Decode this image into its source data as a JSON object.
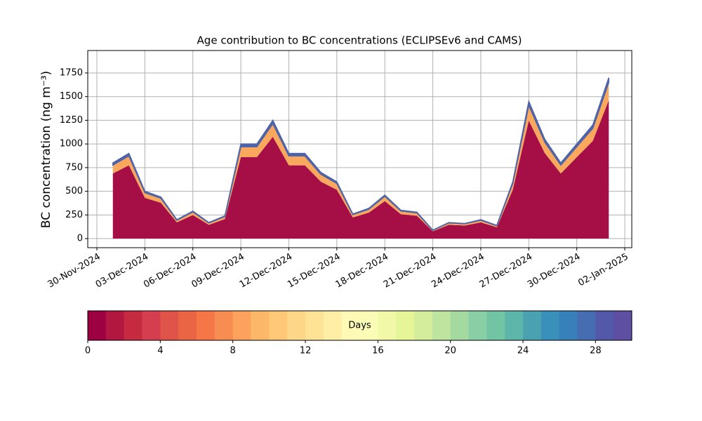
{
  "chart_data": {
    "type": "stacked_area",
    "title": "Age contribution to BC concentrations (ECLIPSEv6 and CAMS)",
    "ylabel": "BC concentration (ng m⁻³)",
    "x": [
      "2024-12-01",
      "2024-12-02",
      "2024-12-03",
      "2024-12-04",
      "2024-12-05",
      "2024-12-06",
      "2024-12-07",
      "2024-12-08",
      "2024-12-09",
      "2024-12-10",
      "2024-12-11",
      "2024-12-12",
      "2024-12-13",
      "2024-12-14",
      "2024-12-15",
      "2024-12-16",
      "2024-12-17",
      "2024-12-18",
      "2024-12-19",
      "2024-12-20",
      "2024-12-21",
      "2024-12-22",
      "2024-12-23",
      "2024-12-24",
      "2024-12-25",
      "2024-12-26",
      "2024-12-27",
      "2024-12-28",
      "2024-12-29",
      "2024-12-30",
      "2024-12-31",
      "2025-01-01"
    ],
    "series": [
      {
        "color": "#a50f45",
        "values": [
          688,
          774,
          430,
          378,
          172,
          249,
          146,
          206,
          860,
          860,
          1075,
          774,
          774,
          602,
          516,
          224,
          275,
          396,
          258,
          241,
          77,
          146,
          138,
          172,
          120,
          516,
          1247,
          903,
          688,
          860,
          1032,
          1462
        ]
      },
      {
        "color": "#f9a85e",
        "values": [
          88,
          99,
          55,
          48,
          22,
          32,
          19,
          26,
          110,
          110,
          138,
          99,
          99,
          77,
          66,
          29,
          35,
          51,
          33,
          31,
          10,
          19,
          18,
          22,
          15,
          66,
          160,
          116,
          88,
          110,
          132,
          187
        ]
      },
      {
        "color": "#4f64a8",
        "values": [
          24,
          27,
          15,
          14,
          6,
          9,
          5,
          8,
          30,
          30,
          37,
          27,
          27,
          21,
          18,
          7,
          10,
          13,
          9,
          8,
          3,
          5,
          4,
          6,
          5,
          18,
          43,
          31,
          24,
          30,
          36,
          51
        ]
      }
    ],
    "xlim": [
      "2024-11-30",
      "2025-01-02"
    ],
    "xticks": [
      {
        "value": "2024-11-30",
        "label": "30-Nov-2024"
      },
      {
        "value": "2024-12-03",
        "label": "03-Dec-2024"
      },
      {
        "value": "2024-12-06",
        "label": "06-Dec-2024"
      },
      {
        "value": "2024-12-09",
        "label": "09-Dec-2024"
      },
      {
        "value": "2024-12-12",
        "label": "12-Dec-2024"
      },
      {
        "value": "2024-12-15",
        "label": "15-Dec-2024"
      },
      {
        "value": "2024-12-18",
        "label": "18-Dec-2024"
      },
      {
        "value": "2024-12-21",
        "label": "21-Dec-2024"
      },
      {
        "value": "2024-12-24",
        "label": "24-Dec-2024"
      },
      {
        "value": "2024-12-27",
        "label": "27-Dec-2024"
      },
      {
        "value": "2024-12-30",
        "label": "30-Dec-2024"
      },
      {
        "value": "2025-01-02",
        "label": "02-Jan-2025"
      }
    ],
    "ylim": [
      -96,
      1987
    ],
    "yticks": [
      0,
      250,
      500,
      750,
      1000,
      1250,
      1500,
      1750
    ],
    "grid": true,
    "colorbar": {
      "label": "Days",
      "lim": [
        0,
        30
      ],
      "ticks": [
        0,
        4,
        8,
        12,
        16,
        20,
        24,
        28
      ],
      "colors": [
        "#9e0142",
        "#b2183f",
        "#c52a41",
        "#d53e4f",
        "#e05349",
        "#ea6544",
        "#f57748",
        "#f88d52",
        "#fba35d",
        "#fdb768",
        "#fec877",
        "#fed687",
        "#fee397",
        "#ffeea6",
        "#fff9b6",
        "#fbfdb7",
        "#f1f9a8",
        "#e6f598",
        "#d3ed9c",
        "#bde5a0",
        "#a4da9f",
        "#89cfa5",
        "#72c5a4",
        "#5db6a9",
        "#4aa2b1",
        "#3990ba",
        "#3780b9",
        "#466db0",
        "#5458a8",
        "#5e4fa2"
      ]
    }
  }
}
